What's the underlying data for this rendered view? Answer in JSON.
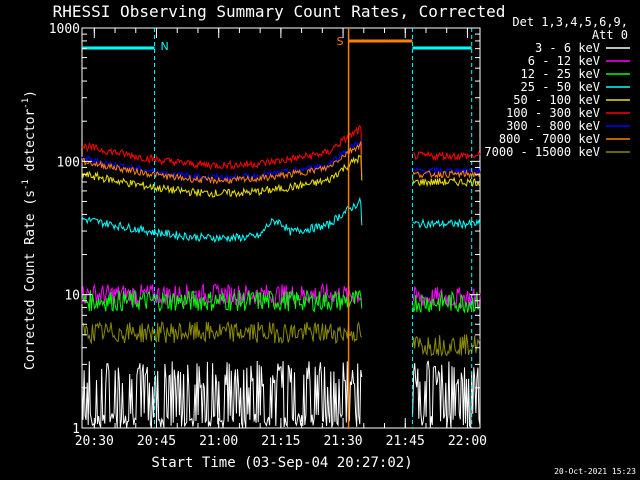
{
  "chart_data": {
    "type": "line",
    "title": "RHESSI Observing Summary Count Rates, Corrected",
    "xlabel": "Start Time (03-Sep-04 20:27:02)",
    "ylabel_main": "Corrected Count Rate (s",
    "ylabel_sup1": "-1",
    "ylabel_mid": " detector",
    "ylabel_sup2": "-1",
    "ylabel_end": ")",
    "y_scale": "log",
    "ylim": [
      1,
      1000
    ],
    "xlim_minutes": [
      0,
      96
    ],
    "x_ticks": [
      {
        "label": "20:30",
        "m": 2.97
      },
      {
        "label": "20:45",
        "m": 17.97
      },
      {
        "label": "21:00",
        "m": 32.97
      },
      {
        "label": "21:15",
        "m": 47.97
      },
      {
        "label": "21:30",
        "m": 62.97
      },
      {
        "label": "21:45",
        "m": 77.97
      },
      {
        "label": "22:00",
        "m": 92.97
      }
    ],
    "y_ticks": [
      {
        "label": "1000",
        "v": 1000
      },
      {
        "label": "100",
        "v": 100
      },
      {
        "label": "10",
        "v": 10
      },
      {
        "label": "1",
        "v": 1
      }
    ],
    "legend_header": [
      "Det 1,3,4,5,6,9,",
      "Att 0"
    ],
    "legend_position": "right",
    "series": [
      {
        "name": "3 - 6 keV",
        "color": "#ffffff",
        "level1": 1.6,
        "level2": 1.6,
        "noise": 0.35,
        "spikes": true
      },
      {
        "name": "6 - 12 keV",
        "color": "#ff00ff",
        "level1": 10,
        "level2": 9.5,
        "noise": 0.08
      },
      {
        "name": "12 - 25 keV",
        "color": "#00ff00",
        "level1": 9,
        "level2": 8.8,
        "noise": 0.08
      },
      {
        "name": "25 - 50 keV",
        "color": "#00ffff",
        "level1": 37,
        "level2": 34,
        "noise": 0.03,
        "bump": true
      },
      {
        "name": "50 - 100 keV",
        "color": "#e8e000",
        "level1": 80,
        "level2": 70,
        "noise": 0.03
      },
      {
        "name": "100 - 300 keV",
        "color": "#ff0000",
        "level1": 130,
        "level2": 110,
        "noise": 0.03
      },
      {
        "name": "300 - 800 keV",
        "color": "#0000ff",
        "level1": 105,
        "level2": 85,
        "noise": 0.025
      },
      {
        "name": "800 - 7000 keV",
        "color": "#ff8000",
        "level1": 100,
        "level2": 80,
        "noise": 0.025
      },
      {
        "name": "7000 - 15000 keV",
        "color": "#8a8a00",
        "level1": 5.2,
        "level2": 4.2,
        "noise": 0.08
      }
    ],
    "gaps_minutes": [
      [
        67.5,
        79.7
      ]
    ],
    "markers": [
      {
        "label": "N",
        "color": "#00ffff",
        "m": 17.5
      },
      {
        "label": "S",
        "color": "#ff8000",
        "m": 64.3
      }
    ],
    "timestamp": "20-Oct-2021 15:23"
  }
}
